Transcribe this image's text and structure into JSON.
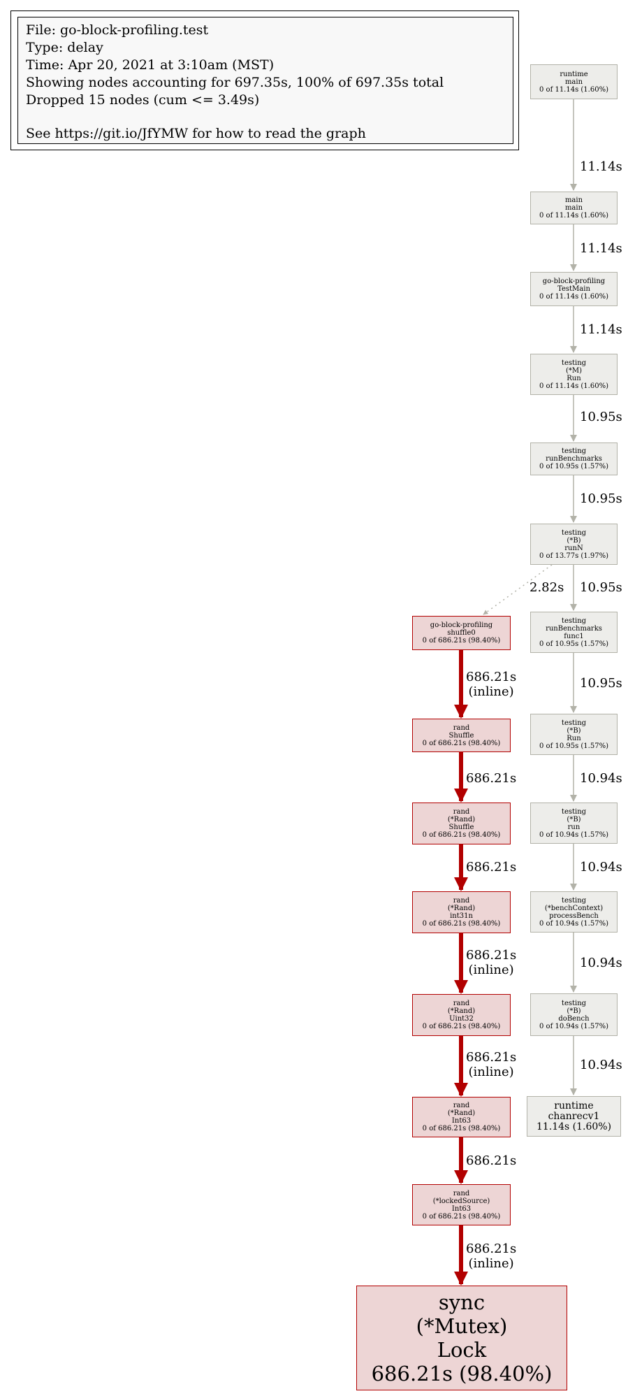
{
  "legend": {
    "file": "File: go-block-profiling.test",
    "type": "Type: delay",
    "time": "Time: Apr 20, 2021 at 3:10am (MST)",
    "showing": "Showing nodes accounting for 697.35s, 100% of 697.35s total",
    "dropped": "Dropped 15 nodes (cum <= 3.49s)",
    "see": "See https://git.io/JfYMW for how to read the graph"
  },
  "colors": {
    "gray_fill": "#ededea",
    "gray_border": "#b2b2a8",
    "red_fill": "#edd5d5",
    "red_border": "#b20000",
    "hot_edge": "#b20000"
  },
  "nodes": {
    "runtime_main": [
      "runtime",
      "main",
      "0 of 11.14s (1.60%)"
    ],
    "main_main": [
      "main",
      "main",
      "0 of 11.14s (1.60%)"
    ],
    "testmain": [
      "go-block-profiling",
      "TestMain",
      "0 of 11.14s (1.60%)"
    ],
    "m_run": [
      "testing",
      "(*M)",
      "Run",
      "0 of 11.14s (1.60%)"
    ],
    "run_benchmarks": [
      "testing",
      "runBenchmarks",
      "0 of 10.95s (1.57%)"
    ],
    "b_runn": [
      "testing",
      "(*B)",
      "runN",
      "0 of 13.77s (1.97%)"
    ],
    "shuffle0": [
      "go-block-profiling",
      "shuffle0",
      "0 of 686.21s (98.40%)"
    ],
    "run_benchmarks_func1": [
      "testing",
      "runBenchmarks",
      "func1",
      "0 of 10.95s (1.57%)"
    ],
    "rand_shuffle": [
      "rand",
      "Shuffle",
      "0 of 686.21s (98.40%)"
    ],
    "b_run": [
      "testing",
      "(*B)",
      "Run",
      "0 of 10.95s (1.57%)"
    ],
    "rand_rand_shuffle": [
      "rand",
      "(*Rand)",
      "Shuffle",
      "0 of 686.21s (98.40%)"
    ],
    "b_run_lower": [
      "testing",
      "(*B)",
      "run",
      "0 of 10.94s (1.57%)"
    ],
    "int31n": [
      "rand",
      "(*Rand)",
      "int31n",
      "0 of 686.21s (98.40%)"
    ],
    "process_bench": [
      "testing",
      "(*benchContext)",
      "processBench",
      "0 of 10.94s (1.57%)"
    ],
    "uint32": [
      "rand",
      "(*Rand)",
      "Uint32",
      "0 of 686.21s (98.40%)"
    ],
    "do_bench": [
      "testing",
      "(*B)",
      "doBench",
      "0 of 10.94s (1.57%)"
    ],
    "int63": [
      "rand",
      "(*Rand)",
      "Int63",
      "0 of 686.21s (98.40%)"
    ],
    "chanrecv1": [
      "runtime",
      "chanrecv1",
      "11.14s (1.60%)"
    ],
    "locked_int63": [
      "rand",
      "(*lockedSource)",
      "Int63",
      "0 of 686.21s (98.40%)"
    ],
    "mutex_lock": [
      "sync",
      "(*Mutex)",
      "Lock",
      "686.21s (98.40%)"
    ]
  },
  "edges": {
    "e1": [
      "11.14s"
    ],
    "e2": [
      "11.14s"
    ],
    "e3": [
      "11.14s"
    ],
    "e4": [
      "10.95s"
    ],
    "e5": [
      "10.95s"
    ],
    "e6": [
      "2.82s"
    ],
    "e7": [
      "10.95s"
    ],
    "e8": [
      "686.21s",
      "(inline)"
    ],
    "e9": [
      "10.95s"
    ],
    "e10": [
      "686.21s"
    ],
    "e11": [
      "10.94s"
    ],
    "e12": [
      "686.21s"
    ],
    "e13": [
      "10.94s"
    ],
    "e14": [
      "686.21s",
      "(inline)"
    ],
    "e15": [
      "10.94s"
    ],
    "e16": [
      "686.21s",
      "(inline)"
    ],
    "e17": [
      "10.94s"
    ],
    "e18": [
      "686.21s"
    ],
    "e19": [
      "686.21s",
      "(inline)"
    ]
  }
}
